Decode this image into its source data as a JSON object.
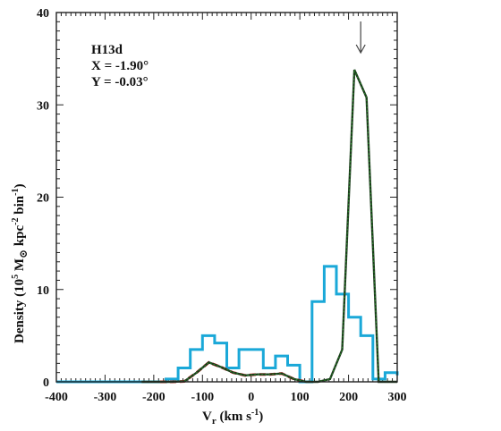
{
  "chart_data": {
    "type": "line",
    "step": true,
    "title": "",
    "annotations": [
      "H13d",
      "X = -1.90°",
      "Y = -0.03°"
    ],
    "xlabel": {
      "main": "V",
      "sub": "r",
      "rest": " (km s",
      "sup": "-1",
      "end": ")"
    },
    "ylabel": {
      "a": "Density (10",
      "sup1": "5",
      "b": " M",
      "sub": "⊙",
      "c": " kpc",
      "sup2": "-2",
      "d": " bin",
      "sup3": "-1",
      "e": ")"
    },
    "xlim": [
      -400,
      300
    ],
    "ylim": [
      0,
      40
    ],
    "xticks": [
      -400,
      -300,
      -200,
      -100,
      0,
      100,
      200,
      300
    ],
    "yticks": [
      0,
      10,
      20,
      30,
      40
    ],
    "marker_arrow_x": 225,
    "series": [
      {
        "color": "#1aa8d8",
        "style": "step",
        "bin_edges": [
          -400,
          -375,
          -350,
          -325,
          -300,
          -275,
          -250,
          -225,
          -200,
          -175,
          -150,
          -125,
          -100,
          -75,
          -50,
          -25,
          0,
          25,
          50,
          75,
          100,
          125,
          150,
          175,
          200,
          225,
          250,
          275,
          300
        ],
        "values": [
          0,
          0,
          0,
          0,
          0,
          0,
          0,
          0,
          0,
          0.3,
          1.5,
          3.5,
          5,
          4.2,
          1.5,
          3.5,
          3.5,
          1.5,
          2.8,
          1.8,
          0,
          8.7,
          12.5,
          9.5,
          7,
          5,
          0.3,
          1,
          0.7
        ]
      },
      {
        "color": "#d42020",
        "style": "dashed",
        "x": [
          -187,
          -162,
          -137,
          -112,
          -87,
          -62,
          -37,
          -12,
          13,
          38,
          63,
          88,
          113
        ],
        "y": [
          0,
          0,
          0.05,
          1,
          2.1,
          1.6,
          1,
          0.7,
          0.8,
          0.8,
          0.9,
          0.3,
          0
        ]
      },
      {
        "color": "#1d3b1d",
        "style": "solid",
        "x": [
          -225,
          -187,
          -162,
          -137,
          -112,
          -87,
          -62,
          -37,
          -12,
          13,
          38,
          63,
          88,
          113,
          137,
          162,
          187,
          212,
          237,
          262,
          300
        ],
        "y": [
          0,
          0,
          0,
          0.05,
          1,
          2.1,
          1.6,
          1,
          0.7,
          0.8,
          0.8,
          0.9,
          0.3,
          0,
          0,
          0.3,
          3.5,
          33.8,
          30.8,
          0,
          0
        ]
      },
      {
        "color": "#2a8a2a",
        "style": "dotted",
        "x": [
          -225,
          -187,
          -162,
          -137,
          -112,
          -87,
          -62,
          -37,
          -12,
          13,
          38,
          63,
          88,
          113,
          137,
          162,
          187,
          212,
          237,
          262,
          300
        ],
        "y": [
          0,
          0,
          0,
          0.05,
          1,
          2.1,
          1.6,
          1,
          0.7,
          0.8,
          0.8,
          0.9,
          0.3,
          0,
          0,
          0.3,
          3.5,
          33.8,
          30.8,
          0,
          0
        ]
      }
    ]
  }
}
